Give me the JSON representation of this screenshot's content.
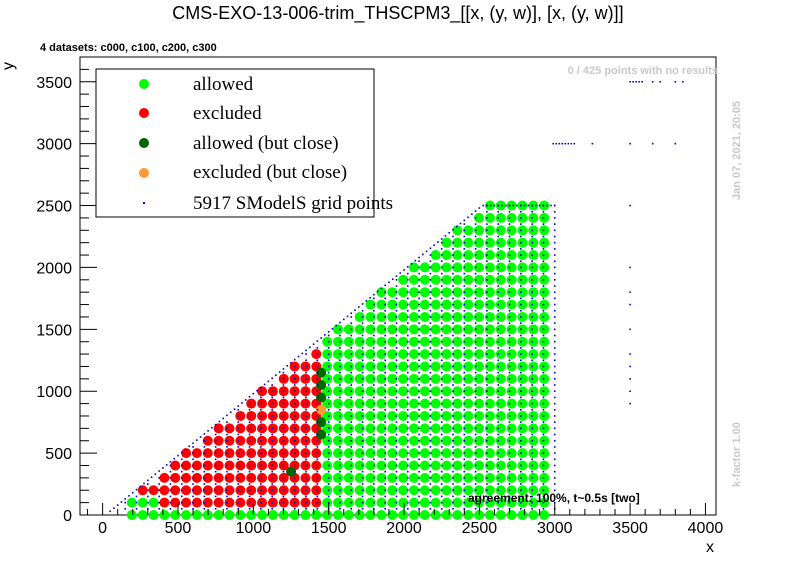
{
  "chart_data": {
    "type": "scatter",
    "title": "CMS-EXO-13-006-trim_THSCPM3_[[x, (y, w)], [x, (y, w)]]",
    "xlabel": "x",
    "ylabel": "y",
    "xlim": [
      -150,
      4070
    ],
    "ylim": [
      0,
      3700
    ],
    "x_ticks": [
      0,
      500,
      1000,
      1500,
      2000,
      2500,
      3000,
      3500,
      4000
    ],
    "y_ticks": [
      0,
      500,
      1000,
      1500,
      2000,
      2500,
      3000,
      3500
    ],
    "x_tick_labels": [
      "0",
      "500",
      "1000",
      "1500",
      "2000",
      "2500",
      "3000",
      "3500",
      "4000"
    ],
    "y_tick_labels": [
      "0",
      "500",
      "1000",
      "1500",
      "2000",
      "2500",
      "3000",
      "3500"
    ],
    "legend_position": "top-left",
    "colors": {
      "allowed": "#00ff00",
      "excluded": "#ff0000",
      "allowed_close": "#006600",
      "excluded_close": "#ff9933",
      "grid_points": "#0000cc"
    },
    "legend": [
      {
        "key": "allowed",
        "label": "allowed"
      },
      {
        "key": "excluded",
        "label": "excluded"
      },
      {
        "key": "allowed_close",
        "label": "allowed (but close)"
      },
      {
        "key": "excluded_close",
        "label": "excluded (but close)"
      },
      {
        "key": "grid_points",
        "label": "5917 SModelS grid points"
      }
    ],
    "region": {
      "x_step": 72,
      "y_step": 100,
      "diagonal_offset": 0,
      "excluded_below_x": 1420,
      "allowed_x_max": 2950,
      "allowed_y_max": 2500,
      "allowed_close_points": [
        [
          1450,
          1150
        ],
        [
          1450,
          1050
        ],
        [
          1450,
          950
        ],
        [
          1450,
          750
        ],
        [
          1450,
          650
        ],
        [
          1250,
          350
        ]
      ],
      "excluded_close_points": [
        [
          1450,
          850
        ]
      ]
    },
    "grid_point_rows": {
      "x_range": [
        50,
        3000
      ],
      "sparse_columns_x": [
        3500
      ],
      "sparse_rows": [
        {
          "y": 3000,
          "x": [
            2990,
            3010,
            3030,
            3050,
            3070,
            3090,
            3110,
            3130,
            3250,
            3500,
            3650,
            3800
          ]
        },
        {
          "y": 3500,
          "x": [
            3500,
            3520,
            3540,
            3560,
            3580,
            3650,
            3700,
            3800,
            3850
          ]
        }
      ]
    },
    "annotations": {
      "datasets": "4 datasets: c000, c100, c200, c300",
      "no_results": "0 / 425 points with no results",
      "date": "Jan 07, 2021, 20:05",
      "kfactor": "k-factor 1.00",
      "agreement": "agreement: 100%, t~0.5s [two]"
    }
  }
}
